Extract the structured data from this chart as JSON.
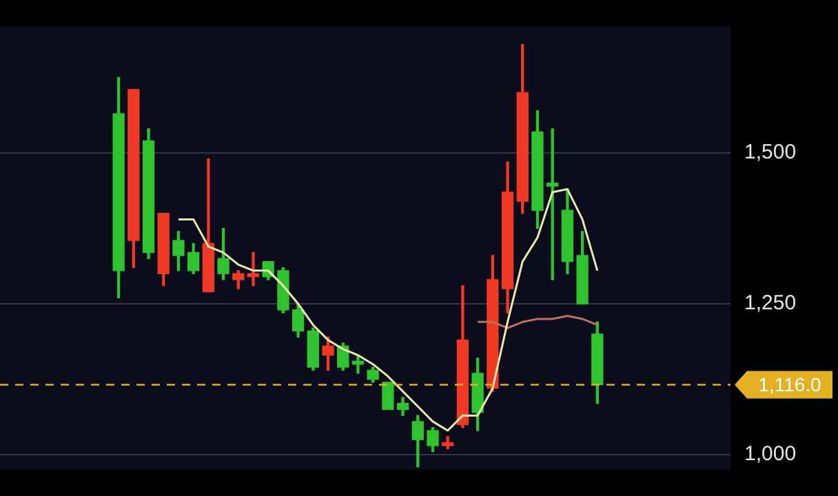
{
  "chart_data": {
    "type": "candlestick",
    "categories": [
      null,
      null,
      null,
      null,
      null,
      null,
      null,
      null,
      null,
      null,
      null,
      null,
      null,
      null,
      null,
      null,
      null,
      null,
      null,
      null,
      null,
      null,
      null,
      null,
      null,
      null,
      null,
      null,
      null,
      null,
      null,
      null,
      null
    ],
    "ohlc": [
      [
        1565,
        1625,
        1260,
        1305
      ],
      [
        1355,
        1605,
        1310,
        1605
      ],
      [
        1520,
        1540,
        1325,
        1335
      ],
      [
        1300,
        1400,
        1280,
        1400
      ],
      [
        1355,
        1370,
        1305,
        1330
      ],
      [
        1335,
        1350,
        1300,
        1305
      ],
      [
        1270,
        1490,
        1270,
        1350
      ],
      [
        1325,
        1375,
        1290,
        1300
      ],
      [
        1290,
        1305,
        1275,
        1300
      ],
      [
        1295,
        1335,
        1280,
        1300
      ],
      [
        1320,
        1320,
        1290,
        1295
      ],
      [
        1305,
        1310,
        1235,
        1240
      ],
      [
        1240,
        1250,
        1195,
        1205
      ],
      [
        1205,
        1210,
        1140,
        1145
      ],
      [
        1165,
        1195,
        1140,
        1180
      ],
      [
        1180,
        1185,
        1140,
        1145
      ],
      [
        1155,
        1165,
        1135,
        1150
      ],
      [
        1140,
        1145,
        1120,
        1125
      ],
      [
        1120,
        1120,
        1075,
        1075
      ],
      [
        1085,
        1095,
        1065,
        1075
      ],
      [
        1055,
        1065,
        980,
        1025
      ],
      [
        1040,
        1045,
        1005,
        1015
      ],
      [
        1015,
        1030,
        1010,
        1020
      ],
      [
        1050,
        1280,
        1045,
        1190
      ],
      [
        1135,
        1160,
        1040,
        1070
      ],
      [
        1110,
        1330,
        1105,
        1290
      ],
      [
        1275,
        1485,
        1235,
        1435
      ],
      [
        1420,
        1680,
        1400,
        1600
      ],
      [
        1535,
        1570,
        1375,
        1405
      ],
      [
        1450,
        1540,
        1290,
        1445
      ],
      [
        1405,
        1440,
        1300,
        1320
      ],
      [
        1330,
        1370,
        1250,
        1250
      ],
      [
        1200,
        1220,
        1085,
        1116
      ]
    ],
    "colors": [
      "#2fc42f",
      "#f03a26",
      "#2fc42f",
      "#f03a26",
      "#2fc42f",
      "#2fc42f",
      "#f03a26",
      "#2fc42f",
      "#f03a26",
      "#f03a26",
      "#2fc42f",
      "#2fc42f",
      "#2fc42f",
      "#2fc42f",
      "#f03a26",
      "#2fc42f",
      "#2fc42f",
      "#2fc42f",
      "#2fc42f",
      "#2fc42f",
      "#2fc42f",
      "#2fc42f",
      "#f03a26",
      "#f03a26",
      "#2fc42f",
      "#f03a26",
      "#f03a26",
      "#f03a26",
      "#2fc42f",
      "#2fc42f",
      "#2fc42f",
      "#2fc42f",
      "#2fc42f"
    ],
    "series": [
      {
        "type": "line",
        "color": "#ece9a8",
        "values": [
          null,
          null,
          null,
          null,
          1390,
          1390,
          1345,
          1335,
          1315,
          1305,
          1305,
          1280,
          1250,
          1215,
          1190,
          1175,
          1165,
          1150,
          1130,
          1105,
          1080,
          1055,
          1040,
          1065,
          1065,
          1110,
          1220,
          1320,
          1360,
          1435,
          1440,
          1390,
          1305
        ]
      },
      {
        "type": "line",
        "color": "#c0705e",
        "values": [
          null,
          null,
          null,
          null,
          null,
          null,
          null,
          null,
          null,
          null,
          null,
          null,
          null,
          null,
          null,
          null,
          null,
          null,
          null,
          null,
          null,
          null,
          null,
          null,
          1220,
          1220,
          1210,
          1220,
          1225,
          1225,
          1230,
          1225,
          1215
        ]
      }
    ],
    "ylim": [
      975,
      1710
    ],
    "yticks": [
      {
        "value": 1000,
        "label": "1,000"
      },
      {
        "value": 1250,
        "label": "1,250"
      },
      {
        "value": 1500,
        "label": "1,500"
      }
    ],
    "ref_lines": [
      {
        "axis": "y",
        "value": 1116,
        "label": "1,116.0",
        "color": "#e3b024",
        "line_style": "dashed"
      }
    ],
    "grid": "y",
    "tick_labels": "y",
    "marker": "none",
    "line_style": "solid"
  }
}
